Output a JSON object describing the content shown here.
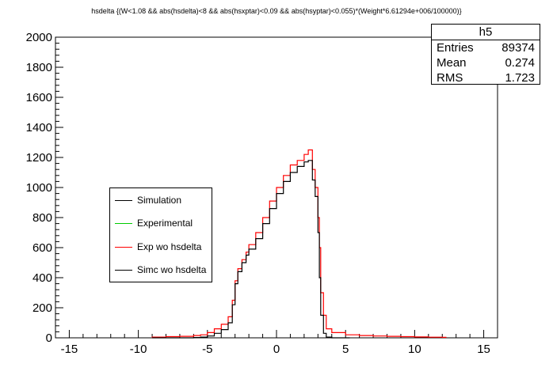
{
  "chart_data": {
    "type": "line",
    "title": "hsdelta {(W<1.08 && abs(hsdelta)<8 && abs(hsxptar)<0.09 && abs(hsyptar)<0.055)*(Weight*6.61294e+006/100000)}",
    "xlabel": "",
    "ylabel": "",
    "xlim": [
      -16,
      16
    ],
    "ylim": [
      0,
      2000
    ],
    "x_ticks": [
      -15,
      -10,
      -5,
      0,
      5,
      10,
      15
    ],
    "y_ticks": [
      0,
      200,
      400,
      600,
      800,
      1000,
      1200,
      1400,
      1600,
      1800,
      2000
    ],
    "grid": false,
    "legend_position": "center-left",
    "series": [
      {
        "name": "Exp wo hsdelta",
        "color": "#ff0000",
        "x": [
          -9.0,
          -8.0,
          -7.0,
          -6.0,
          -5.5,
          -5.0,
          -4.5,
          -4.0,
          -3.5,
          -3.2,
          -3.0,
          -2.8,
          -2.5,
          -2.2,
          -2.0,
          -1.5,
          -1.0,
          -0.5,
          0.0,
          0.5,
          1.0,
          1.5,
          2.0,
          2.3,
          2.6,
          2.8,
          3.0,
          3.1,
          3.2,
          3.4,
          3.6,
          4.0,
          5.0,
          6.0,
          7.0,
          8.0,
          9.0,
          10.0,
          11.0,
          12.0
        ],
        "values": [
          5,
          8,
          10,
          15,
          20,
          35,
          60,
          90,
          140,
          250,
          380,
          460,
          520,
          570,
          620,
          700,
          800,
          910,
          1000,
          1080,
          1150,
          1180,
          1220,
          1250,
          1120,
          1000,
          800,
          600,
          300,
          150,
          60,
          35,
          20,
          15,
          12,
          10,
          8,
          6,
          4,
          3
        ]
      },
      {
        "name": "Simc wo hsdelta",
        "color": "#000000",
        "x": [
          -9.0,
          -8.0,
          -7.0,
          -6.0,
          -5.5,
          -5.0,
          -4.5,
          -4.0,
          -3.5,
          -3.2,
          -3.0,
          -2.8,
          -2.5,
          -2.2,
          -2.0,
          -1.5,
          -1.0,
          -0.5,
          0.0,
          0.5,
          1.0,
          1.5,
          2.0,
          2.3,
          2.6,
          2.8,
          3.0,
          3.1,
          3.2,
          3.4,
          3.6,
          4.0,
          5.0
        ],
        "values": [
          0,
          0,
          0,
          2,
          5,
          12,
          30,
          55,
          100,
          220,
          360,
          440,
          500,
          550,
          590,
          660,
          760,
          860,
          960,
          1040,
          1100,
          1140,
          1170,
          1180,
          1050,
          940,
          700,
          400,
          150,
          30,
          5,
          0,
          0
        ]
      }
    ],
    "legend": [
      {
        "label": "Simulation",
        "color": "#000000"
      },
      {
        "label": "Experimental",
        "color": "#00cc00"
      },
      {
        "label": "Exp wo hsdelta",
        "color": "#ff0000"
      },
      {
        "label": "Simc wo hsdelta",
        "color": "#000000"
      }
    ],
    "stats": {
      "name": "h5",
      "entries_label": "Entries",
      "entries": "89374",
      "mean_label": "Mean",
      "mean": "0.274",
      "rms_label": "RMS",
      "rms": "1.723"
    }
  }
}
